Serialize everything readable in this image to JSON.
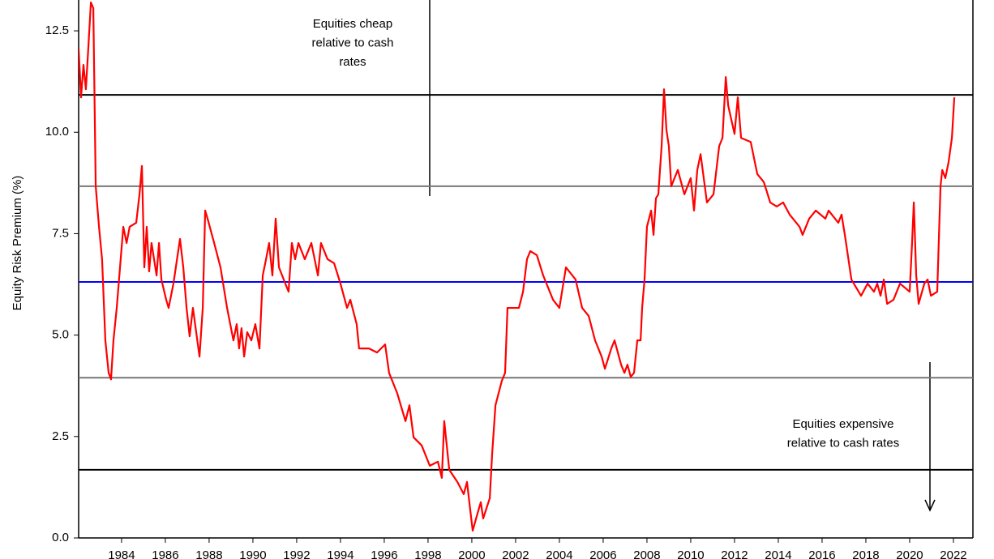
{
  "chart_data": {
    "type": "line",
    "y_label": "Equity Risk Premium (%)",
    "color": "#ff0000",
    "xlim": [
      1982.04,
      2022.89
    ],
    "ylim": [
      0,
      13.26
    ],
    "xticks": [
      1984,
      1986,
      1988,
      1990,
      1992,
      1994,
      1996,
      1998,
      2000,
      2002,
      2004,
      2006,
      2008,
      2010,
      2012,
      2014,
      2016,
      2018,
      2020,
      2022
    ],
    "yticks": [
      {
        "value": 0,
        "label": "0.0"
      },
      2.5,
      {
        "value": 5,
        "label": "5.0"
      },
      7.5,
      {
        "value": 10,
        "label": "10.0"
      },
      12.5
    ],
    "hlines": [
      {
        "value": 10.92,
        "color": "#000000"
      },
      {
        "value": 8.67,
        "color": "#777777"
      },
      {
        "value": 6.31,
        "color": "#0000ff"
      },
      {
        "value": 3.95,
        "color": "#777777"
      },
      {
        "value": 1.68,
        "color": "#000000"
      }
    ],
    "annotations": [
      {
        "lines": [
          "Equities cheap",
          "relative to cash",
          "rates"
        ]
      },
      {
        "lines": [
          "Equities expensive",
          "relative to cash rates"
        ]
      }
    ],
    "x": [
      1982.04,
      1982.15,
      1982.26,
      1982.37,
      1982.48,
      1982.6,
      1982.71,
      1982.82,
      1982.97,
      1983.11,
      1983.26,
      1983.41,
      1983.52,
      1983.63,
      1983.78,
      1983.93,
      1984.08,
      1984.23,
      1984.37,
      1984.67,
      1984.82,
      1984.93,
      1985.04,
      1985.15,
      1985.26,
      1985.37,
      1985.6,
      1985.71,
      1985.82,
      1986.04,
      1986.15,
      1986.37,
      1986.67,
      1986.82,
      1986.97,
      1987.11,
      1987.26,
      1987.56,
      1987.71,
      1987.82,
      1987.93,
      1988.23,
      1988.52,
      1988.82,
      1989.11,
      1989.26,
      1989.37,
      1989.48,
      1989.6,
      1989.74,
      1989.93,
      1990.11,
      1990.3,
      1990.45,
      1990.6,
      1990.74,
      1990.89,
      1991.04,
      1991.19,
      1991.48,
      1991.63,
      1991.78,
      1991.93,
      1992.08,
      1992.37,
      1992.67,
      1992.97,
      1993.11,
      1993.41,
      1993.71,
      1994.0,
      1994.3,
      1994.45,
      1994.74,
      1994.85,
      1995.3,
      1995.67,
      1996.04,
      1996.22,
      1996.59,
      1996.97,
      1997.15,
      1997.34,
      1997.71,
      1998.08,
      1998.45,
      1998.63,
      1998.74,
      1998.97,
      1999.34,
      1999.63,
      1999.78,
      1999.93,
      2000.04,
      2000.3,
      2000.41,
      2000.52,
      2000.82,
      2000.93,
      2001.08,
      2001.37,
      2001.52,
      2001.63,
      2002.15,
      2002.34,
      2002.52,
      2002.67,
      2002.97,
      2003.26,
      2003.71,
      2004.0,
      2004.3,
      2004.74,
      2005.04,
      2005.34,
      2005.63,
      2005.93,
      2006.08,
      2006.37,
      2006.52,
      2006.82,
      2006.97,
      2007.11,
      2007.26,
      2007.41,
      2007.56,
      2007.71,
      2007.78,
      2007.89,
      2008.0,
      2008.19,
      2008.3,
      2008.41,
      2008.52,
      2008.67,
      2008.78,
      2008.89,
      2009.0,
      2009.11,
      2009.41,
      2009.71,
      2010.0,
      2010.15,
      2010.3,
      2010.45,
      2010.74,
      2011.04,
      2011.3,
      2011.45,
      2011.6,
      2011.71,
      2012.0,
      2012.15,
      2012.3,
      2012.74,
      2013.04,
      2013.34,
      2013.63,
      2013.93,
      2014.22,
      2014.52,
      2014.97,
      2015.11,
      2015.41,
      2015.71,
      2016.15,
      2016.3,
      2016.74,
      2016.89,
      2017.04,
      2017.34,
      2017.78,
      2018.08,
      2018.37,
      2018.52,
      2018.67,
      2018.82,
      2018.97,
      2019.26,
      2019.56,
      2020.0,
      2020.11,
      2020.19,
      2020.3,
      2020.41,
      2020.67,
      2020.82,
      2020.97,
      2021.26,
      2021.34,
      2021.41,
      2021.49,
      2021.63,
      2021.78,
      2021.93,
      2022.04
    ],
    "values": [
      12.06,
      10.86,
      11.66,
      11.06,
      12.06,
      13.2,
      13.06,
      8.67,
      7.67,
      6.87,
      4.87,
      4.07,
      3.91,
      4.87,
      5.67,
      6.67,
      7.67,
      7.27,
      7.67,
      7.77,
      8.47,
      9.17,
      6.67,
      7.67,
      6.57,
      7.27,
      6.47,
      7.27,
      6.37,
      5.87,
      5.67,
      6.27,
      7.37,
      6.67,
      5.67,
      4.97,
      5.67,
      4.47,
      5.67,
      8.07,
      7.87,
      7.27,
      6.67,
      5.67,
      4.87,
      5.27,
      4.67,
      5.17,
      4.47,
      5.07,
      4.87,
      5.27,
      4.67,
      6.47,
      6.87,
      7.27,
      6.47,
      7.87,
      6.67,
      6.27,
      6.07,
      7.27,
      6.87,
      7.27,
      6.87,
      7.27,
      6.47,
      7.27,
      6.87,
      6.77,
      6.27,
      5.67,
      5.87,
      5.27,
      4.67,
      4.67,
      4.57,
      4.77,
      4.07,
      3.57,
      2.88,
      3.27,
      2.48,
      2.28,
      1.78,
      1.88,
      1.48,
      2.88,
      1.68,
      1.38,
      1.08,
      1.38,
      0.68,
      0.18,
      0.68,
      0.88,
      0.48,
      0.98,
      2.08,
      3.27,
      3.87,
      4.07,
      5.67,
      5.67,
      6.07,
      6.87,
      7.07,
      6.97,
      6.47,
      5.87,
      5.67,
      6.67,
      6.37,
      5.67,
      5.47,
      4.87,
      4.47,
      4.17,
      4.67,
      4.87,
      4.27,
      4.07,
      4.27,
      3.97,
      4.07,
      4.87,
      4.87,
      5.67,
      6.37,
      7.67,
      8.07,
      7.47,
      8.37,
      8.47,
      9.66,
      11.06,
      10.06,
      9.66,
      8.67,
      9.07,
      8.47,
      8.87,
      8.07,
      9.07,
      9.46,
      8.27,
      8.47,
      9.66,
      9.86,
      11.36,
      10.66,
      9.96,
      10.86,
      9.86,
      9.76,
      8.97,
      8.77,
      8.27,
      8.17,
      8.27,
      7.97,
      7.67,
      7.47,
      7.87,
      8.07,
      7.87,
      8.07,
      7.77,
      7.97,
      7.47,
      6.37,
      5.97,
      6.27,
      6.07,
      6.27,
      5.97,
      6.37,
      5.77,
      5.87,
      6.27,
      6.07,
      7.27,
      8.27,
      6.47,
      5.77,
      6.27,
      6.37,
      5.97,
      6.07,
      7.47,
      8.67,
      9.07,
      8.87,
      9.27,
      9.86,
      10.86
    ]
  }
}
